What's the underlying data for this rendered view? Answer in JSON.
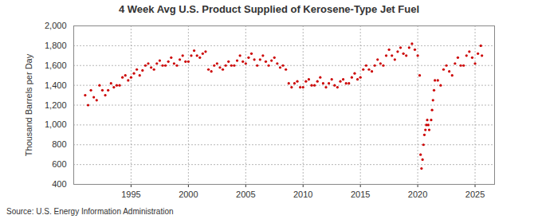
{
  "chart_data": {
    "type": "scatter",
    "title": "4 Week Avg U.S. Product Supplied of Kerosene-Type Jet Fuel",
    "y_label": "Thousand Barrels per Day",
    "caption": "Source: U.S. Energy Information Administration",
    "color": "#cc0000",
    "marker": "circle",
    "grid": true,
    "xlim": [
      1990,
      2026.7
    ],
    "xticks": [
      1995,
      2000,
      2005,
      2010,
      2015,
      2020,
      2025
    ],
    "ylim": [
      400,
      2000
    ],
    "yticks": [
      400,
      600,
      800,
      {
        "value": 1000,
        "label": "1,000"
      },
      {
        "value": 1200,
        "label": "1,200"
      },
      {
        "value": 1400,
        "label": "1,400"
      },
      {
        "value": 1600,
        "label": "1,600"
      },
      {
        "value": 1800,
        "label": "1,800"
      },
      {
        "value": 2000,
        "label": "2,000"
      }
    ],
    "x": [
      1991.0,
      1991.25,
      1991.5,
      1991.75,
      1992.0,
      1992.25,
      1992.5,
      1992.75,
      1993.0,
      1993.25,
      1993.5,
      1993.75,
      1994.0,
      1994.25,
      1994.5,
      1994.75,
      1995.0,
      1995.25,
      1995.5,
      1995.75,
      1996.0,
      1996.25,
      1996.5,
      1996.75,
      1997.0,
      1997.25,
      1997.5,
      1997.75,
      1998.0,
      1998.25,
      1998.5,
      1998.75,
      1999.0,
      1999.25,
      1999.5,
      1999.75,
      2000.0,
      2000.25,
      2000.5,
      2000.75,
      2001.0,
      2001.25,
      2001.5,
      2001.75,
      2002.0,
      2002.25,
      2002.5,
      2002.75,
      2003.0,
      2003.25,
      2003.5,
      2003.75,
      2004.0,
      2004.25,
      2004.5,
      2004.75,
      2005.0,
      2005.25,
      2005.5,
      2005.75,
      2006.0,
      2006.25,
      2006.5,
      2006.75,
      2007.0,
      2007.25,
      2007.5,
      2007.75,
      2008.0,
      2008.25,
      2008.5,
      2008.75,
      2009.0,
      2009.25,
      2009.5,
      2009.75,
      2010.0,
      2010.25,
      2010.5,
      2010.75,
      2011.0,
      2011.25,
      2011.5,
      2011.75,
      2012.0,
      2012.25,
      2012.5,
      2012.75,
      2013.0,
      2013.25,
      2013.5,
      2013.75,
      2014.0,
      2014.25,
      2014.5,
      2014.75,
      2015.0,
      2015.25,
      2015.5,
      2015.75,
      2016.0,
      2016.25,
      2016.5,
      2016.75,
      2017.0,
      2017.25,
      2017.5,
      2017.75,
      2018.0,
      2018.25,
      2018.5,
      2018.75,
      2019.0,
      2019.25,
      2019.5,
      2019.75,
      2020.0,
      2020.17,
      2020.25,
      2020.33,
      2020.42,
      2020.5,
      2020.58,
      2020.67,
      2020.75,
      2020.83,
      2020.92,
      2021.0,
      2021.17,
      2021.25,
      2021.33,
      2021.42,
      2021.5,
      2021.75,
      2022.0,
      2022.25,
      2022.5,
      2022.75,
      2023.0,
      2023.25,
      2023.5,
      2023.75,
      2024.0,
      2024.25,
      2024.5,
      2024.75,
      2025.0,
      2025.25,
      2025.5,
      2025.6
    ],
    "values": [
      1300,
      1200,
      1350,
      1280,
      1250,
      1400,
      1350,
      1300,
      1350,
      1420,
      1380,
      1400,
      1400,
      1480,
      1500,
      1450,
      1480,
      1520,
      1560,
      1500,
      1550,
      1600,
      1620,
      1580,
      1560,
      1620,
      1650,
      1600,
      1600,
      1640,
      1680,
      1620,
      1600,
      1660,
      1700,
      1640,
      1640,
      1700,
      1750,
      1700,
      1680,
      1720,
      1740,
      1560,
      1540,
      1600,
      1620,
      1580,
      1560,
      1600,
      1640,
      1600,
      1600,
      1650,
      1700,
      1640,
      1620,
      1680,
      1720,
      1660,
      1600,
      1660,
      1700,
      1640,
      1600,
      1650,
      1680,
      1620,
      1580,
      1600,
      1560,
      1420,
      1380,
      1420,
      1440,
      1380,
      1380,
      1440,
      1460,
      1400,
      1400,
      1440,
      1480,
      1420,
      1380,
      1420,
      1460,
      1400,
      1380,
      1440,
      1460,
      1420,
      1420,
      1480,
      1520,
      1460,
      1480,
      1560,
      1600,
      1560,
      1540,
      1600,
      1660,
      1620,
      1600,
      1700,
      1760,
      1700,
      1660,
      1740,
      1780,
      1720,
      1700,
      1780,
      1820,
      1760,
      1700,
      1500,
      700,
      560,
      650,
      800,
      900,
      950,
      1000,
      1050,
      1000,
      950,
      1050,
      1150,
      1250,
      1350,
      1450,
      1450,
      1400,
      1560,
      1600,
      1540,
      1500,
      1620,
      1680,
      1600,
      1600,
      1700,
      1740,
      1680,
      1620,
      1720,
      1800,
      1700
    ]
  }
}
